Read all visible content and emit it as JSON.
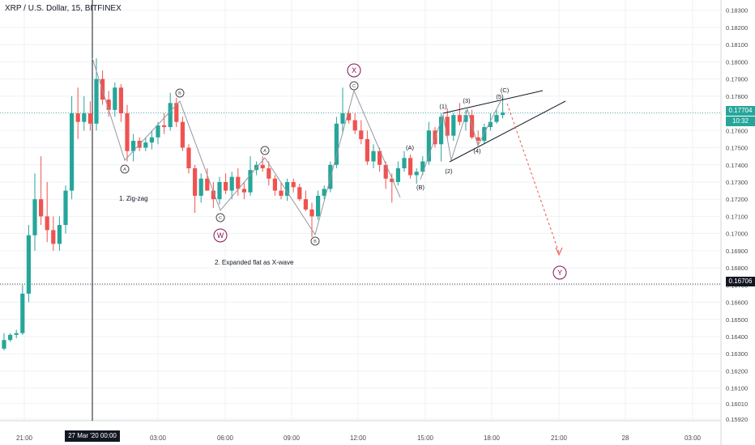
{
  "title": "XRP / U.S. Dollar, 15, BITFINEX",
  "colors": {
    "up": "#26a69a",
    "down": "#ef5350",
    "grid": "#eef1f5",
    "axis_text": "#4a4a4a",
    "last_price_line": "#26a69a",
    "crosshair": "#131722",
    "wave_line": "#9598a1",
    "projection": "#ef5350",
    "triangle": "#131722"
  },
  "annotations": {
    "note_zigzag": "1. Zig-zag",
    "note_flat": "2. Expanded flat as X-wave"
  },
  "badges": {
    "last_price": "0.17704",
    "countdown": "10:32",
    "crosshair_price": "0.16706",
    "crosshair_time": "27 Mar '20   00:00"
  },
  "chart_data": {
    "type": "candlestick",
    "title": "XRP / U.S. Dollar, 15, BITFINEX",
    "ylim": [
      0.1591,
      0.1836
    ],
    "y_ticks": [
      "0.18300",
      "0.18200",
      "0.18100",
      "0.18000",
      "0.17900",
      "0.17800",
      "0.17700",
      "0.17600",
      "0.17500",
      "0.17400",
      "0.17300",
      "0.17200",
      "0.17100",
      "0.17000",
      "0.16900",
      "0.16800",
      "0.16700",
      "0.16600",
      "0.16500",
      "0.16400",
      "0.16300",
      "0.16200",
      "0.16100",
      "0.16010",
      "0.15920"
    ],
    "x_ticks": [
      "21:00",
      "03:00",
      "06:00",
      "09:00",
      "12:00",
      "15:00",
      "18:00",
      "21:00",
      "28",
      "03:00"
    ],
    "last_price": 0.17704,
    "crosshair_price": 0.16706,
    "candles": [
      [
        0.1633,
        0.1642,
        0.1632,
        0.1638
      ],
      [
        0.1638,
        0.1642,
        0.1637,
        0.1641
      ],
      [
        0.1641,
        0.1644,
        0.1639,
        0.1642
      ],
      [
        0.1642,
        0.167,
        0.1641,
        0.1665
      ],
      [
        0.1665,
        0.1705,
        0.166,
        0.1699
      ],
      [
        0.1699,
        0.1735,
        0.169,
        0.172
      ],
      [
        0.172,
        0.1745,
        0.1705,
        0.171
      ],
      [
        0.171,
        0.173,
        0.1695,
        0.1702
      ],
      [
        0.1702,
        0.171,
        0.169,
        0.1694
      ],
      [
        0.1694,
        0.171,
        0.169,
        0.1705
      ],
      [
        0.1705,
        0.1728,
        0.17,
        0.1725
      ],
      [
        0.1725,
        0.178,
        0.172,
        0.177
      ],
      [
        0.177,
        0.1785,
        0.1755,
        0.1765
      ],
      [
        0.1765,
        0.178,
        0.176,
        0.177
      ],
      [
        0.177,
        0.1777,
        0.176,
        0.1764
      ],
      [
        0.1764,
        0.1802,
        0.176,
        0.179
      ],
      [
        0.179,
        0.1795,
        0.1775,
        0.1778
      ],
      [
        0.1778,
        0.1783,
        0.1768,
        0.1772
      ],
      [
        0.1772,
        0.1788,
        0.1768,
        0.1785
      ],
      [
        0.1785,
        0.1787,
        0.1765,
        0.177
      ],
      [
        0.177,
        0.1775,
        0.1742,
        0.1748
      ],
      [
        0.1748,
        0.1758,
        0.1742,
        0.1754
      ],
      [
        0.1754,
        0.1756,
        0.1748,
        0.175
      ],
      [
        0.175,
        0.1756,
        0.1748,
        0.1753
      ],
      [
        0.1753,
        0.176,
        0.1749,
        0.1756
      ],
      [
        0.1756,
        0.1765,
        0.1752,
        0.1763
      ],
      [
        0.1763,
        0.177,
        0.1758,
        0.1762
      ],
      [
        0.1762,
        0.1782,
        0.176,
        0.1776
      ],
      [
        0.1776,
        0.1779,
        0.1762,
        0.1765
      ],
      [
        0.1765,
        0.1768,
        0.1748,
        0.175
      ],
      [
        0.175,
        0.1752,
        0.1735,
        0.1738
      ],
      [
        0.1738,
        0.174,
        0.1712,
        0.1722
      ],
      [
        0.1722,
        0.1735,
        0.1718,
        0.1732
      ],
      [
        0.1732,
        0.1738,
        0.1725,
        0.1725
      ],
      [
        0.1725,
        0.173,
        0.1715,
        0.172
      ],
      [
        0.172,
        0.1733,
        0.1717,
        0.173
      ],
      [
        0.173,
        0.1735,
        0.1723,
        0.1725
      ],
      [
        0.1725,
        0.1736,
        0.172,
        0.1733
      ],
      [
        0.1733,
        0.1738,
        0.1722,
        0.1726
      ],
      [
        0.1726,
        0.173,
        0.172,
        0.1724
      ],
      [
        0.1724,
        0.1745,
        0.1722,
        0.1737
      ],
      [
        0.1737,
        0.1742,
        0.1734,
        0.174
      ],
      [
        0.174,
        0.1745,
        0.1736,
        0.1738
      ],
      [
        0.1738,
        0.1742,
        0.1728,
        0.1732
      ],
      [
        0.1732,
        0.1734,
        0.1722,
        0.1725
      ],
      [
        0.1725,
        0.173,
        0.172,
        0.1722
      ],
      [
        0.1722,
        0.1732,
        0.1719,
        0.173
      ],
      [
        0.173,
        0.1732,
        0.1724,
        0.1727
      ],
      [
        0.1727,
        0.1729,
        0.1719,
        0.172
      ],
      [
        0.172,
        0.1725,
        0.1713,
        0.1714
      ],
      [
        0.1714,
        0.1718,
        0.1698,
        0.171
      ],
      [
        0.171,
        0.1725,
        0.1708,
        0.1722
      ],
      [
        0.1722,
        0.1728,
        0.172,
        0.1726
      ],
      [
        0.1726,
        0.1742,
        0.1724,
        0.174
      ],
      [
        0.174,
        0.1768,
        0.1738,
        0.1764
      ],
      [
        0.1764,
        0.1785,
        0.1758,
        0.177
      ],
      [
        0.177,
        0.1772,
        0.1764,
        0.1766
      ],
      [
        0.1766,
        0.177,
        0.1758,
        0.176
      ],
      [
        0.176,
        0.1766,
        0.1752,
        0.1755
      ],
      [
        0.1755,
        0.176,
        0.174,
        0.1742
      ],
      [
        0.1742,
        0.1752,
        0.1738,
        0.1748
      ],
      [
        0.1748,
        0.175,
        0.1736,
        0.174
      ],
      [
        0.174,
        0.1742,
        0.1726,
        0.1732
      ],
      [
        0.1732,
        0.1735,
        0.1718,
        0.173
      ],
      [
        0.173,
        0.1742,
        0.1728,
        0.1738
      ],
      [
        0.1738,
        0.1748,
        0.1736,
        0.1744
      ],
      [
        0.1744,
        0.1746,
        0.1732,
        0.1734
      ],
      [
        0.1734,
        0.1738,
        0.1729,
        0.1736
      ],
      [
        0.1736,
        0.1745,
        0.1734,
        0.1742
      ],
      [
        0.1742,
        0.1765,
        0.174,
        0.176
      ],
      [
        0.176,
        0.1762,
        0.175,
        0.1752
      ],
      [
        0.1752,
        0.177,
        0.1742,
        0.1768
      ],
      [
        0.1768,
        0.1773,
        0.1755,
        0.1757
      ],
      [
        0.1757,
        0.177,
        0.1754,
        0.1769
      ],
      [
        0.1769,
        0.1776,
        0.1763,
        0.1765
      ],
      [
        0.1765,
        0.1772,
        0.176,
        0.1769
      ],
      [
        0.1769,
        0.1772,
        0.1755,
        0.1756
      ],
      [
        0.1756,
        0.176,
        0.1752,
        0.1754
      ],
      [
        0.1754,
        0.1764,
        0.1752,
        0.1762
      ],
      [
        0.1762,
        0.177,
        0.176,
        0.1765
      ],
      [
        0.1765,
        0.1772,
        0.1764,
        0.1769
      ],
      [
        0.1769,
        0.1779,
        0.1767,
        0.17704
      ]
    ],
    "wave_labels": [
      "A",
      "B",
      "C",
      "A",
      "B",
      "C",
      "W",
      "X",
      "Y",
      "(1)",
      "(2)",
      "(3)",
      "(4)",
      "(5)",
      "(A)",
      "(B)",
      "(C)"
    ]
  }
}
